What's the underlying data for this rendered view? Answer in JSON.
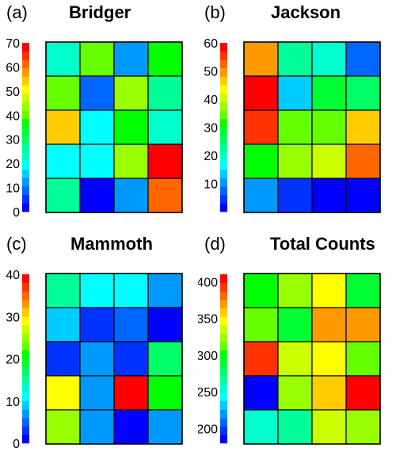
{
  "palette": [
    "#0000ff",
    "#0033ff",
    "#0066ff",
    "#0099ff",
    "#00ccff",
    "#00ffff",
    "#00ffcc",
    "#00ff99",
    "#00ff66",
    "#00ff33",
    "#00ff00",
    "#66ff00",
    "#99ff00",
    "#ccff00",
    "#ffff00",
    "#ffcc00",
    "#ff9900",
    "#ff6600",
    "#ff3300",
    "#ff0000"
  ],
  "chart_data": [
    {
      "type": "heatmap",
      "panel_label": "(a)",
      "title": "Bridger",
      "colorbar": {
        "min": 0,
        "max": 70,
        "ticks": [
          0,
          10,
          20,
          30,
          40,
          50,
          60,
          70
        ]
      },
      "values": [
        [
          24,
          40,
          13,
          36
        ],
        [
          40,
          9,
          45,
          26
        ],
        [
          55,
          20,
          38,
          24
        ],
        [
          18,
          19,
          42,
          70
        ],
        [
          25,
          0,
          12,
          60
        ]
      ]
    },
    {
      "type": "heatmap",
      "panel_label": "(b)",
      "title": "Jackson",
      "colorbar": {
        "min": 0,
        "max": 60,
        "ticks": [
          10,
          20,
          30,
          40,
          50,
          60
        ]
      },
      "values": [
        [
          50,
          23,
          20,
          6
        ],
        [
          58,
          12,
          27,
          24
        ],
        [
          54,
          35,
          33,
          47
        ],
        [
          32,
          38,
          40,
          53
        ],
        [
          11,
          5,
          2,
          1
        ]
      ]
    },
    {
      "type": "heatmap",
      "panel_label": "(c)",
      "title": "Mammoth",
      "colorbar": {
        "min": 0,
        "max": 40,
        "ticks": [
          0,
          10,
          20,
          30,
          40
        ]
      },
      "values": [
        [
          14,
          11,
          11,
          6
        ],
        [
          9,
          3,
          5,
          1
        ],
        [
          2,
          6,
          3,
          17
        ],
        [
          28,
          6,
          40,
          20
        ],
        [
          25,
          6,
          1,
          6
        ]
      ]
    },
    {
      "type": "heatmap",
      "panel_label": "(d)",
      "title": "Total Counts",
      "colorbar": {
        "min": 180,
        "max": 410,
        "ticks": [
          200,
          250,
          300,
          350,
          400
        ]
      },
      "values": [
        [
          295,
          322,
          350,
          290
        ],
        [
          316,
          288,
          366,
          365
        ],
        [
          395,
          332,
          348,
          314
        ],
        [
          190,
          322,
          360,
          405
        ],
        [
          253,
          270,
          330,
          325
        ]
      ]
    }
  ]
}
